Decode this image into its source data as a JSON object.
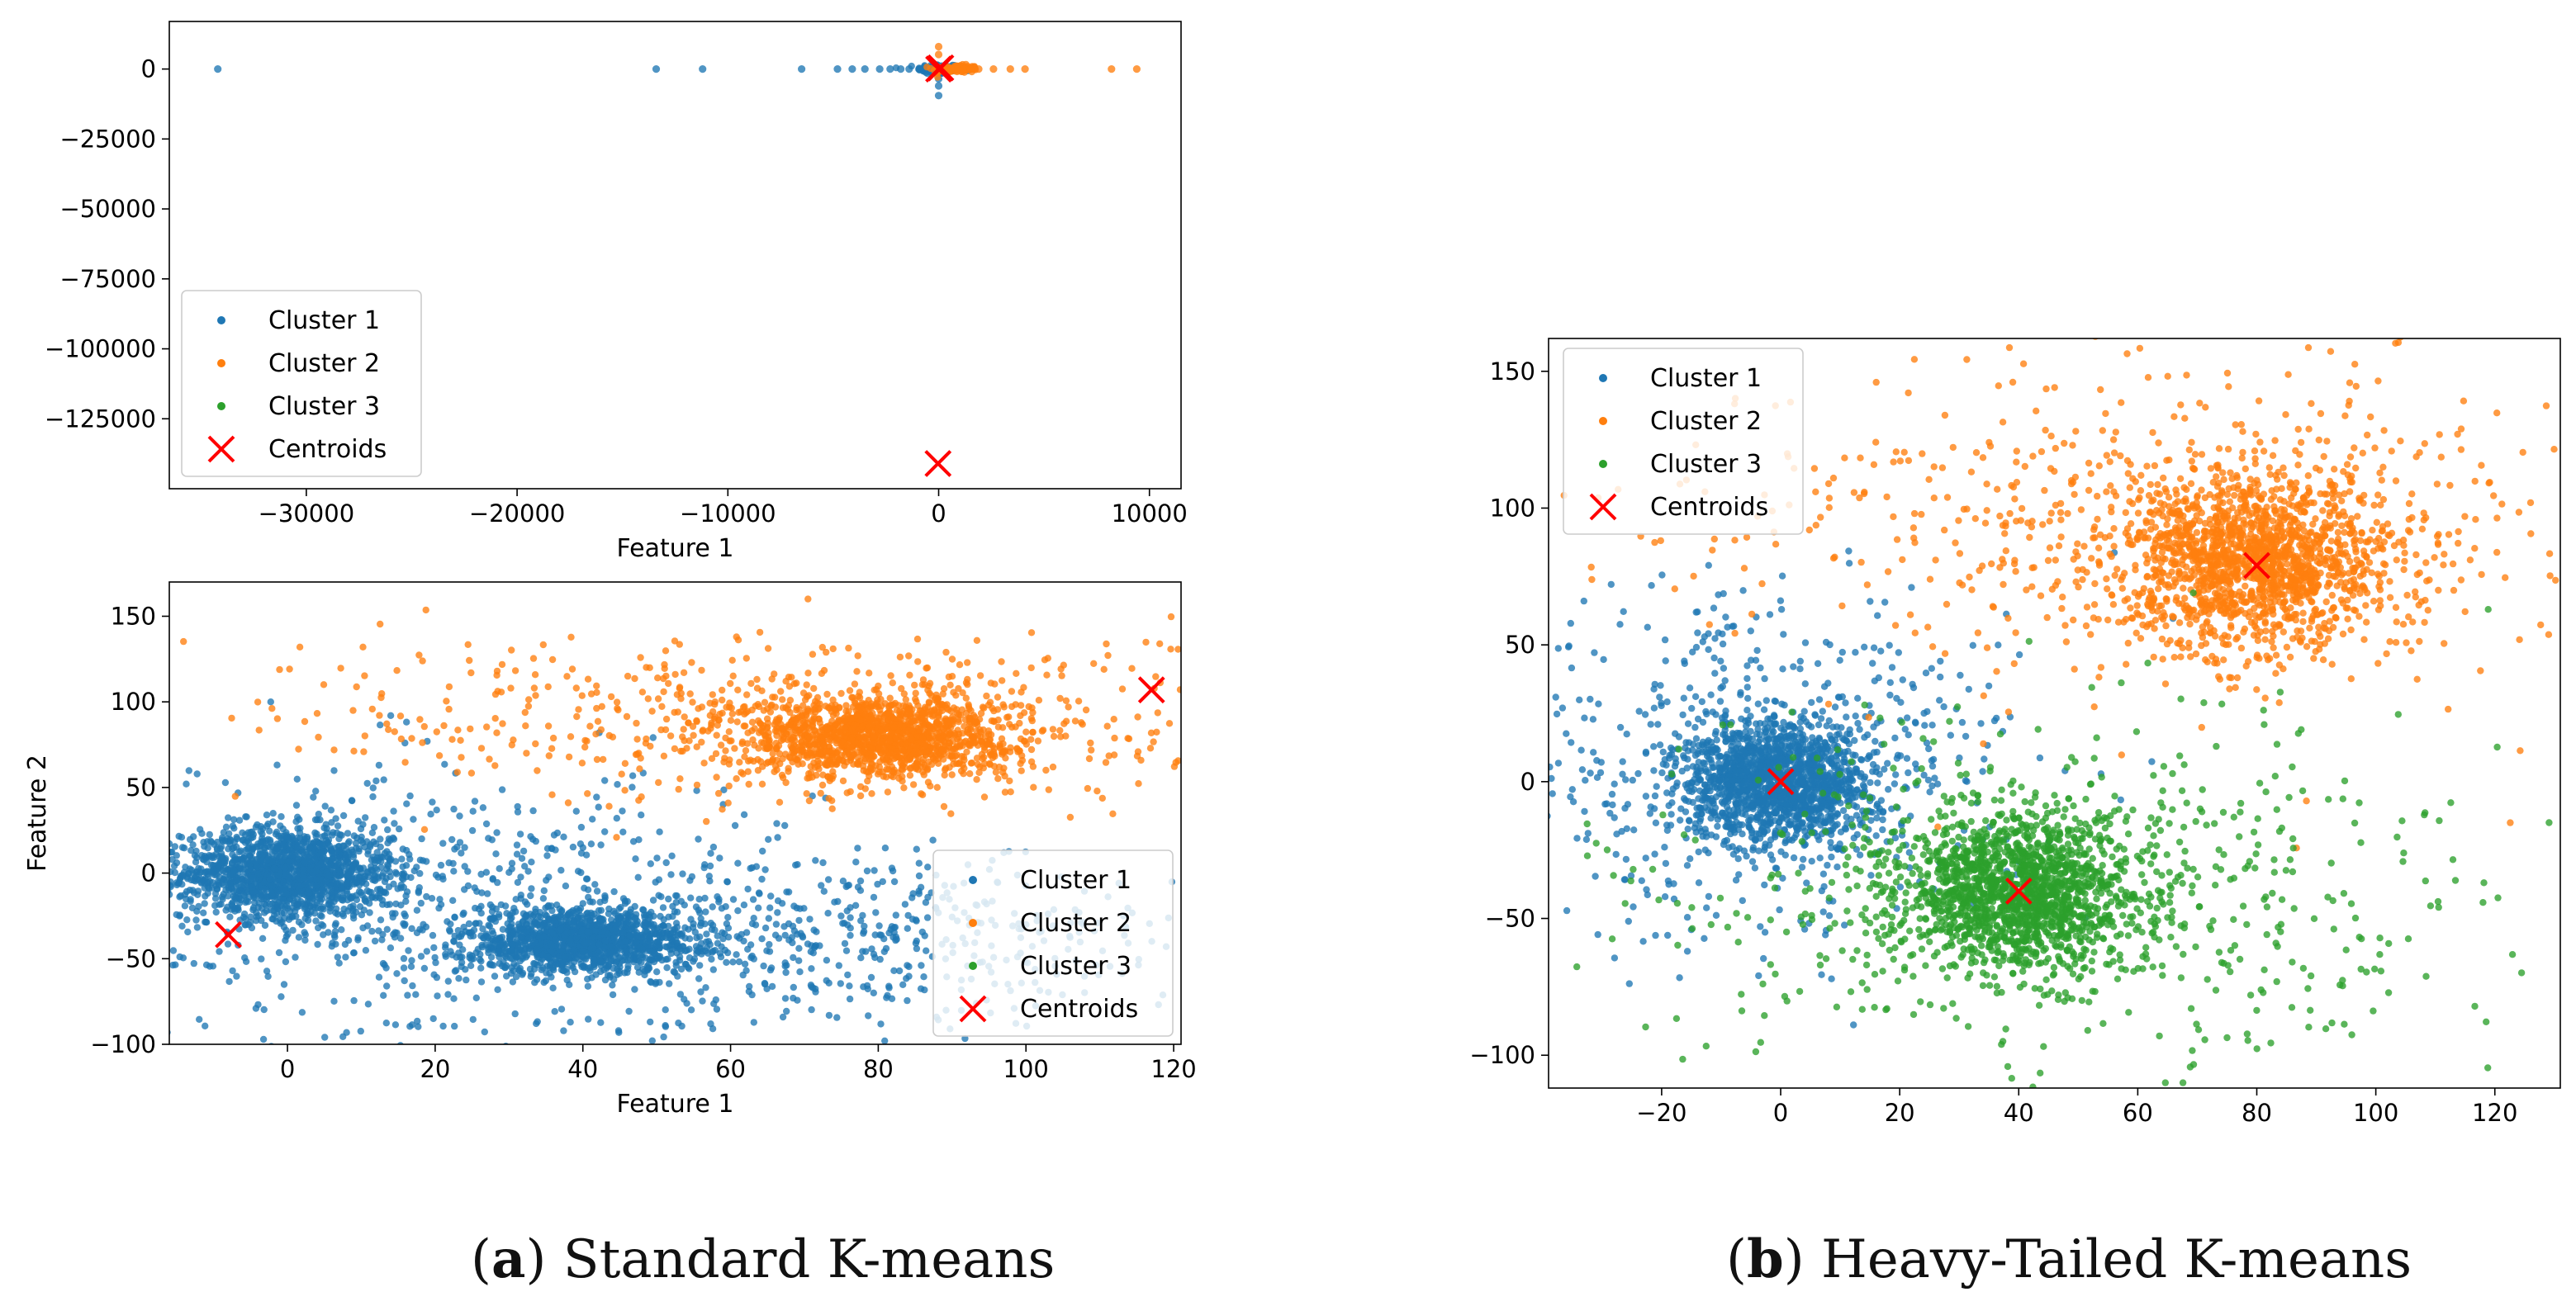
{
  "colors": {
    "cluster1": "#1f77b4",
    "cluster2": "#ff7f0e",
    "cluster3": "#2ca02c",
    "centroid": "#ff0000"
  },
  "legend": {
    "cluster1": "Cluster 1",
    "cluster2": "Cluster 2",
    "cluster3": "Cluster 3",
    "centroids": "Centroids"
  },
  "captions": {
    "a_letter": "a",
    "a_text": "Standard K-means",
    "b_letter": "b",
    "b_text": "Heavy-Tailed K-means"
  },
  "chart_data": [
    {
      "id": "a_top",
      "type": "scatter",
      "title": "",
      "xlabel": "Feature 1",
      "ylabel": "",
      "xlim": [
        -36500,
        11500
      ],
      "ylim": [
        -150000,
        17000
      ],
      "xticks": [
        -30000,
        -20000,
        -10000,
        0,
        10000
      ],
      "yticks": [
        0,
        -25000,
        -50000,
        -75000,
        -100000,
        -125000
      ],
      "legend_position": "lower-left",
      "series": [
        {
          "name": "Cluster 1",
          "color": "cluster1",
          "outliers": [
            [
              -34200,
              0
            ],
            [
              -13400,
              0
            ],
            [
              -11200,
              0
            ],
            [
              -6500,
              0
            ],
            [
              -4800,
              0
            ],
            [
              -4100,
              0
            ],
            [
              -3500,
              0
            ],
            [
              -2800,
              0
            ],
            [
              -2300,
              0
            ],
            [
              -1800,
              0
            ],
            [
              -1400,
              0
            ],
            [
              -900,
              0
            ],
            [
              -500,
              0
            ],
            [
              0,
              -3500
            ],
            [
              0,
              -6000
            ],
            [
              0,
              -9500
            ]
          ],
          "clusters": [
            {
              "cx": 0,
              "cy": 0,
              "sx": 500,
              "sy": 900,
              "n": 120
            }
          ]
        },
        {
          "name": "Cluster 2",
          "color": "cluster2",
          "outliers": [
            [
              600,
              0
            ],
            [
              900,
              0
            ],
            [
              1200,
              0
            ],
            [
              1500,
              0
            ],
            [
              1900,
              0
            ],
            [
              2600,
              0
            ],
            [
              3400,
              0
            ],
            [
              4100,
              0
            ],
            [
              8200,
              0
            ],
            [
              9400,
              0
            ],
            [
              0,
              5200
            ],
            [
              0,
              8000
            ]
          ],
          "clusters": [
            {
              "cx": 800,
              "cy": 0,
              "sx": 550,
              "sy": 700,
              "n": 120
            }
          ]
        },
        {
          "name": "Cluster 3",
          "color": "cluster3",
          "outliers": [],
          "clusters": []
        }
      ],
      "centroids": [
        [
          0,
          0
        ],
        [
          -30,
          -141000
        ],
        [
          100,
          400
        ]
      ]
    },
    {
      "id": "a_bottom",
      "type": "scatter",
      "title": "",
      "xlabel": "Feature 1",
      "ylabel": "Feature 2",
      "xlim": [
        -16,
        121
      ],
      "ylim": [
        -100,
        170
      ],
      "xticks": [
        0,
        20,
        40,
        60,
        80,
        100,
        120
      ],
      "yticks": [
        150,
        100,
        50,
        0,
        -50,
        -100
      ],
      "legend_position": "lower-right",
      "series": [
        {
          "name": "Cluster 1",
          "color": "cluster1",
          "clusters": [
            {
              "cx": 0,
              "cy": 0,
              "sx": 7,
              "sy": 13,
              "n": 1500
            },
            {
              "cx": 40,
              "cy": -40,
              "sx": 8,
              "sy": 9,
              "n": 1300
            },
            {
              "cx": 20,
              "cy": -20,
              "sx": 25,
              "sy": 40,
              "n": 700
            },
            {
              "cx": 80,
              "cy": -40,
              "sx": 22,
              "sy": 25,
              "n": 450
            }
          ]
        },
        {
          "name": "Cluster 2",
          "color": "cluster2",
          "clusters": [
            {
              "cx": 80,
              "cy": 80,
              "sx": 9,
              "sy": 12,
              "n": 1400
            },
            {
              "cx": 70,
              "cy": 90,
              "sx": 35,
              "sy": 25,
              "n": 550
            }
          ]
        },
        {
          "name": "Cluster 3",
          "color": "cluster3",
          "clusters": []
        }
      ],
      "centroids": [
        [
          -8,
          -36
        ],
        [
          117,
          107
        ]
      ]
    },
    {
      "id": "b",
      "type": "scatter",
      "title": "",
      "xlabel": "",
      "ylabel": "",
      "xlim": [
        -39,
        131
      ],
      "ylim": [
        -112,
        162
      ],
      "xticks": [
        -20,
        0,
        20,
        40,
        60,
        80,
        100,
        120
      ],
      "yticks": [
        150,
        100,
        50,
        0,
        -50,
        -100
      ],
      "legend_position": "top-left",
      "series": [
        {
          "name": "Cluster 1",
          "color": "cluster1",
          "clusters": [
            {
              "cx": 0,
              "cy": 0,
              "sx": 8,
              "sy": 11,
              "n": 1500
            },
            {
              "cx": -5,
              "cy": 5,
              "sx": 22,
              "sy": 32,
              "n": 550
            }
          ]
        },
        {
          "name": "Cluster 2",
          "color": "cluster2",
          "clusters": [
            {
              "cx": 80,
              "cy": 80,
              "sx": 11,
              "sy": 15,
              "n": 1500
            },
            {
              "cx": 70,
              "cy": 95,
              "sx": 40,
              "sy": 30,
              "n": 650
            }
          ]
        },
        {
          "name": "Cluster 3",
          "color": "cluster3",
          "clusters": [
            {
              "cx": 40,
              "cy": -40,
              "sx": 10,
              "sy": 13,
              "n": 1500
            },
            {
              "cx": 45,
              "cy": -45,
              "sx": 35,
              "sy": 35,
              "n": 650
            }
          ]
        }
      ],
      "centroids": [
        [
          0,
          0
        ],
        [
          80,
          79
        ],
        [
          40,
          -40
        ]
      ]
    }
  ]
}
